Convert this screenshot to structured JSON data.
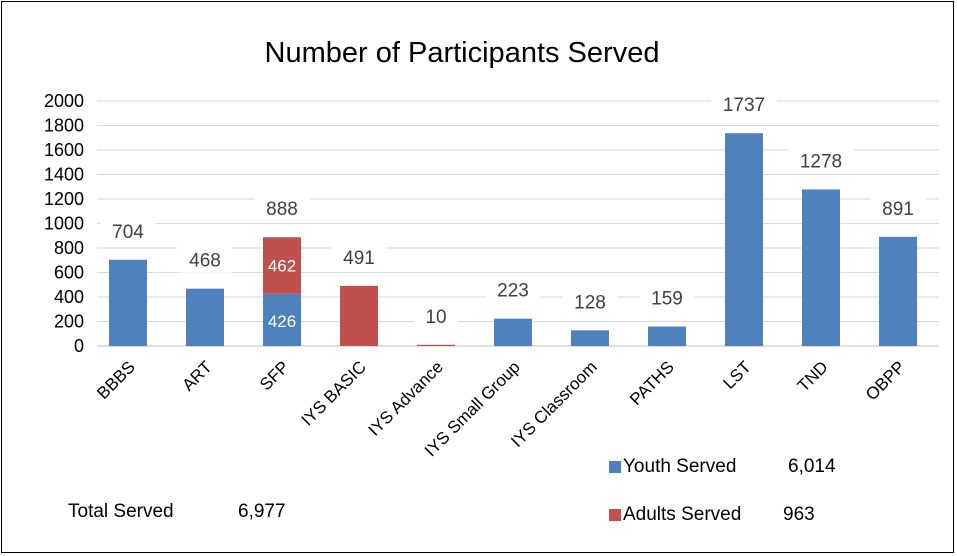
{
  "chart_data": {
    "type": "bar",
    "title": "Number of Participants Served",
    "categories": [
      "BBBS",
      "ART",
      "SFP",
      "IYS BASIC",
      "IYS Advance",
      "IYS Small Group",
      "IYS Classroom",
      "PATHS",
      "LST",
      "TND",
      "OBPP"
    ],
    "series": [
      {
        "name": "Youth Served",
        "values": [
          704,
          468,
          426,
          0,
          0,
          223,
          128,
          159,
          1737,
          1278,
          891
        ],
        "color": "#4f81bd"
      },
      {
        "name": "Adults Served",
        "values": [
          0,
          0,
          462,
          491,
          10,
          0,
          0,
          0,
          0,
          0,
          0
        ],
        "color": "#c0504d"
      }
    ],
    "totals": [
      "704",
      "468",
      "888",
      "491",
      "10",
      "223",
      "128",
      "159",
      "1737",
      "1278",
      "891"
    ],
    "segment_labels": {
      "SFP": [
        "426",
        "462"
      ]
    },
    "yticks": [
      "0",
      "200",
      "400",
      "600",
      "800",
      "1000",
      "1200",
      "1400",
      "1600",
      "1800",
      "2000"
    ],
    "ylim": [
      0,
      2000
    ],
    "stacked": true,
    "grid": true,
    "legend": {
      "placement": "bottom-right",
      "entries": [
        {
          "label": "Youth Served",
          "value": "6,014",
          "color": "#4f81bd"
        },
        {
          "label": "Adults Served",
          "value": "963",
          "color": "#c0504d"
        }
      ]
    },
    "total_served": {
      "label": "Total Served",
      "value": "6,977"
    }
  }
}
